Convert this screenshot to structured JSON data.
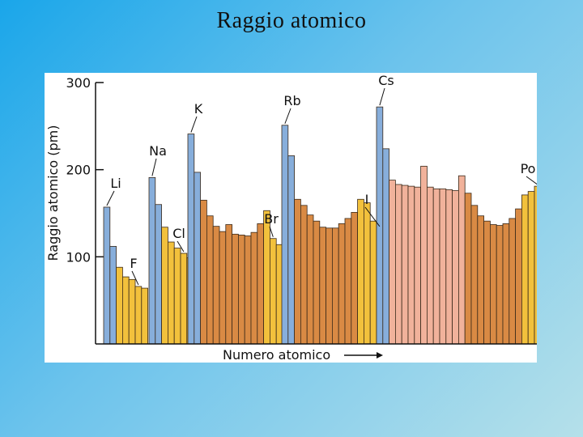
{
  "slide": {
    "title": "Raggio atomico"
  },
  "colors": {
    "alkali": "#87aedb",
    "metal": "#d98a44",
    "nonmetal": "#f2c13c",
    "lanthanide": "#f1b29b",
    "bar_stroke": "#3b2a1a",
    "axis": "#111111"
  },
  "chart_data": {
    "type": "bar",
    "title": "",
    "xlabel": "Numero atomico",
    "ylabel": "Raggio atomico (pm)",
    "ylim": [
      0,
      300
    ],
    "yticks": [
      100,
      200,
      300
    ],
    "periods": [
      {
        "values": [
          157,
          112,
          88,
          77,
          74,
          66,
          64
        ],
        "kinds": [
          "alkali",
          "alkali",
          "nonmetal",
          "nonmetal",
          "nonmetal",
          "nonmetal",
          "nonmetal"
        ]
      },
      {
        "values": [
          191,
          160,
          134,
          117,
          110,
          104,
          99
        ],
        "kinds": [
          "alkali",
          "alkali",
          "nonmetal",
          "nonmetal",
          "nonmetal",
          "nonmetal",
          "nonmetal"
        ]
      },
      {
        "values": [
          241,
          197,
          165,
          147,
          135,
          129,
          137,
          126,
          125,
          124,
          128,
          138,
          153,
          121,
          114
        ],
        "kinds": [
          "alkali",
          "alkali",
          "metal",
          "metal",
          "metal",
          "metal",
          "metal",
          "metal",
          "metal",
          "metal",
          "metal",
          "metal",
          "nonmetal",
          "nonmetal",
          "nonmetal"
        ]
      },
      {
        "values": [
          251,
          216,
          166,
          159,
          148,
          141,
          134,
          133,
          133,
          138,
          144,
          151,
          166,
          162,
          141,
          133
        ],
        "kinds": [
          "alkali",
          "alkali",
          "metal",
          "metal",
          "metal",
          "metal",
          "metal",
          "metal",
          "metal",
          "metal",
          "metal",
          "metal",
          "nonmetal",
          "nonmetal",
          "nonmetal",
          "nonmetal"
        ]
      },
      {
        "values": [
          272,
          224,
          188,
          183,
          182,
          181,
          180,
          204,
          180,
          178,
          178,
          177,
          176,
          193,
          173,
          159,
          147,
          141,
          137,
          136,
          138,
          144,
          155,
          171,
          175,
          181,
          167
        ],
        "kinds": [
          "alkali",
          "alkali",
          "lanthanide",
          "lanthanide",
          "lanthanide",
          "lanthanide",
          "lanthanide",
          "lanthanide",
          "lanthanide",
          "lanthanide",
          "lanthanide",
          "lanthanide",
          "lanthanide",
          "lanthanide",
          "metal",
          "metal",
          "metal",
          "metal",
          "metal",
          "metal",
          "metal",
          "metal",
          "metal",
          "nonmetal",
          "nonmetal",
          "nonmetal",
          "nonmetal"
        ]
      }
    ],
    "annotations": [
      {
        "text": "Li",
        "period": 0,
        "index": 0
      },
      {
        "text": "F",
        "period": 0,
        "index": 5
      },
      {
        "text": "Na",
        "period": 1,
        "index": 0
      },
      {
        "text": "Cl",
        "period": 1,
        "index": 5
      },
      {
        "text": "K",
        "period": 2,
        "index": 0
      },
      {
        "text": "Br",
        "period": 2,
        "index": 13
      },
      {
        "text": "Rb",
        "period": 3,
        "index": 0
      },
      {
        "text": "I",
        "period": 3,
        "index": 15
      },
      {
        "text": "Cs",
        "period": 4,
        "index": 0
      },
      {
        "text": "Po",
        "period": 4,
        "index": 25
      }
    ]
  }
}
